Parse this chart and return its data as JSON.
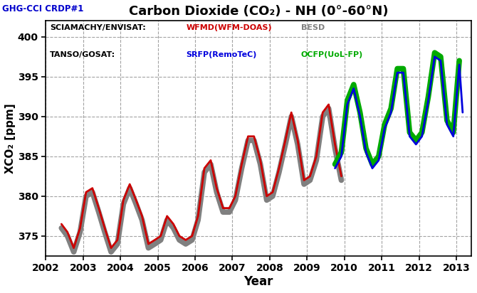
{
  "title": "Carbon Dioxide (CO₂) - NH (0°-60°N)",
  "subtitle": "GHG-CCI CRDP#1",
  "xlabel": "Year",
  "ylabel": "XCO₂ [ppm]",
  "ylim": [
    372.5,
    402
  ],
  "yticks": [
    375,
    380,
    385,
    390,
    395,
    400
  ],
  "xlim": [
    2002.25,
    2013.4
  ],
  "xticks": [
    2002,
    2003,
    2004,
    2005,
    2006,
    2007,
    2008,
    2009,
    2010,
    2011,
    2012,
    2013
  ],
  "bg_color": "#ffffff",
  "plot_bg_color": "#ffffff",
  "grid_color": "#999999",
  "title_color": "#000000",
  "subtitle_color": "#0000cc",
  "wfmd_color": "#cc0000",
  "besd_color": "#808080",
  "srfp_color": "#0000dd",
  "ocfp_color": "#00aa00",
  "wfmd_lw": 2.0,
  "besd_lw": 5.5,
  "srfp_lw": 2.0,
  "ocfp_lw": 5.5,
  "wfmd_x": [
    2002.42,
    2002.58,
    2002.75,
    2002.92,
    2003.08,
    2003.25,
    2003.42,
    2003.58,
    2003.75,
    2003.92,
    2004.08,
    2004.25,
    2004.42,
    2004.58,
    2004.75,
    2004.92,
    2005.08,
    2005.25,
    2005.42,
    2005.58,
    2005.75,
    2005.92,
    2006.08,
    2006.25,
    2006.42,
    2006.58,
    2006.75,
    2006.92,
    2007.08,
    2007.25,
    2007.42,
    2007.58,
    2007.75,
    2007.92,
    2008.08,
    2008.25,
    2008.42,
    2008.58,
    2008.75,
    2008.92,
    2009.08,
    2009.25,
    2009.42,
    2009.58,
    2009.75,
    2009.92
  ],
  "wfmd_y": [
    376.5,
    375.5,
    373.5,
    376.0,
    380.5,
    381.0,
    378.5,
    376.0,
    373.5,
    374.5,
    379.5,
    381.5,
    379.5,
    377.5,
    374.0,
    374.5,
    375.0,
    377.5,
    376.5,
    375.0,
    374.5,
    375.0,
    377.5,
    383.5,
    384.5,
    381.0,
    378.5,
    378.5,
    380.0,
    384.0,
    387.5,
    387.5,
    384.5,
    380.0,
    380.5,
    383.5,
    387.0,
    390.5,
    387.0,
    382.0,
    382.5,
    385.0,
    390.5,
    391.5,
    386.5,
    382.5
  ],
  "besd_x": [
    2002.42,
    2002.58,
    2002.75,
    2002.92,
    2003.08,
    2003.25,
    2003.42,
    2003.58,
    2003.75,
    2003.92,
    2004.08,
    2004.25,
    2004.42,
    2004.58,
    2004.75,
    2004.92,
    2005.08,
    2005.25,
    2005.42,
    2005.58,
    2005.75,
    2005.92,
    2006.08,
    2006.25,
    2006.42,
    2006.58,
    2006.75,
    2006.92,
    2007.08,
    2007.25,
    2007.42,
    2007.58,
    2007.75,
    2007.92,
    2008.08,
    2008.25,
    2008.42,
    2008.58,
    2008.75,
    2008.92,
    2009.08,
    2009.25,
    2009.42,
    2009.58,
    2009.75,
    2009.92
  ],
  "besd_y": [
    376.0,
    375.0,
    373.0,
    375.5,
    380.0,
    380.5,
    378.0,
    375.5,
    373.0,
    374.0,
    379.0,
    381.0,
    379.0,
    377.0,
    373.5,
    374.0,
    374.5,
    377.0,
    376.0,
    374.5,
    374.0,
    374.5,
    377.0,
    383.0,
    384.0,
    380.5,
    378.0,
    378.0,
    379.5,
    383.5,
    387.0,
    387.0,
    384.0,
    379.5,
    380.0,
    383.0,
    386.5,
    390.0,
    386.5,
    381.5,
    382.0,
    384.5,
    390.0,
    391.0,
    386.0,
    382.0
  ],
  "srfp_x": [
    2009.75,
    2009.92,
    2010.08,
    2010.25,
    2010.42,
    2010.58,
    2010.75,
    2010.92,
    2011.08,
    2011.25,
    2011.42,
    2011.58,
    2011.75,
    2011.92,
    2012.08,
    2012.25,
    2012.42,
    2012.58,
    2012.75,
    2012.92,
    2013.08,
    2013.17
  ],
  "srfp_y": [
    383.5,
    385.0,
    391.5,
    393.5,
    390.0,
    385.5,
    383.5,
    384.5,
    388.5,
    390.5,
    395.5,
    395.5,
    387.5,
    386.5,
    387.5,
    392.0,
    397.5,
    397.0,
    389.0,
    387.5,
    396.5,
    390.5
  ],
  "ocfp_x": [
    2009.75,
    2009.92,
    2010.08,
    2010.25,
    2010.42,
    2010.58,
    2010.75,
    2010.92,
    2011.08,
    2011.25,
    2011.42,
    2011.58,
    2011.75,
    2011.92,
    2012.08,
    2012.25,
    2012.42,
    2012.58,
    2012.75,
    2012.92,
    2013.08
  ],
  "ocfp_y": [
    384.0,
    385.5,
    392.0,
    394.0,
    390.5,
    386.0,
    384.0,
    385.0,
    389.0,
    391.0,
    396.0,
    396.0,
    388.0,
    387.0,
    388.0,
    392.5,
    398.0,
    397.5,
    389.5,
    388.0,
    397.0
  ]
}
